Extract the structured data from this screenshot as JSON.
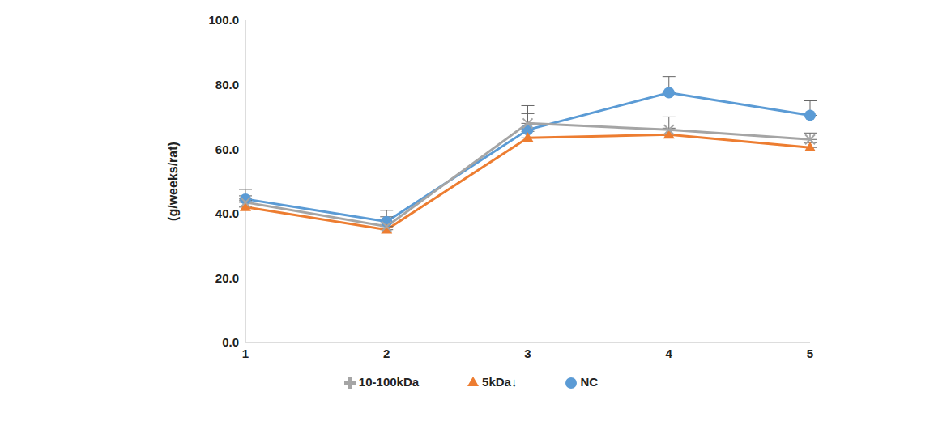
{
  "chart_data": {
    "type": "line",
    "y_label": "(g/weeks/rat)",
    "categories": [
      "1",
      "2",
      "3",
      "4",
      "5"
    ],
    "series": [
      {
        "name": "NC",
        "color": "#5b9bd5",
        "marker": "circle",
        "values": [
          44.5,
          37.5,
          66,
          77.5,
          70.5
        ],
        "errors": [
          3,
          3.5,
          5,
          5,
          4.5
        ]
      },
      {
        "name": "5kDa↓",
        "color": "#ed7d31",
        "marker": "triangle",
        "values": [
          42,
          35,
          63.5,
          64.5,
          60.5
        ],
        "errors": [
          2,
          2,
          2,
          2,
          1.5
        ]
      },
      {
        "name": "10-100kDa",
        "color": "#a5a5a5",
        "marker": "x",
        "values": [
          43.5,
          36,
          68,
          66,
          63
        ],
        "errors": [
          2,
          3,
          5.5,
          4,
          2
        ]
      }
    ],
    "ylim": [
      0,
      100
    ],
    "yticks": [
      {
        "value": 0,
        "label": "0.0"
      },
      {
        "value": 20,
        "label": "20.0"
      },
      {
        "value": 40,
        "label": "40.0"
      },
      {
        "value": 60,
        "label": "60.0"
      },
      {
        "value": 80,
        "label": "80.0"
      },
      {
        "value": 100,
        "label": "100.0"
      }
    ],
    "grid": false,
    "legend": "bottom"
  }
}
